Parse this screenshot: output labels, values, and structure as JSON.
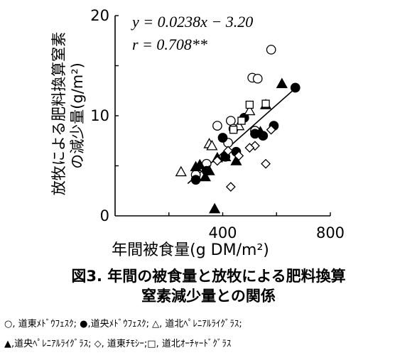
{
  "chart_data": {
    "type": "scatter",
    "title": "",
    "xlabel": "年間被食量(g DM/m²)",
    "ylabel_line1": "放牧による肥料換算窒素",
    "ylabel_line2": "の減少量(g/m²)",
    "xlim": [
      0,
      800
    ],
    "ylim": [
      0,
      20
    ],
    "x_ticks": [
      "400",
      "800"
    ],
    "y_ticks": [
      "0",
      "10",
      "20"
    ],
    "grid": false,
    "regression": {
      "slope": 0.0238,
      "intercept": -3.2,
      "x_range": [
        270,
        680
      ],
      "equation_label": "y = 0.0238x − 3.20",
      "r_label": "r = 0.708**"
    },
    "series": [
      {
        "name": "道東メドウフェスク",
        "marker": "circle-open",
        "points": [
          [
            300,
            4.1
          ],
          [
            340,
            5.2
          ],
          [
            380,
            9.0
          ],
          [
            420,
            7.3
          ],
          [
            430,
            9.5
          ],
          [
            440,
            8.7
          ],
          [
            510,
            13.8
          ],
          [
            530,
            13.7
          ],
          [
            580,
            16.6
          ],
          [
            520,
            8.5
          ]
        ]
      },
      {
        "name": "道央メドウフェスク",
        "marker": "circle-filled",
        "points": [
          [
            300,
            3.6
          ],
          [
            340,
            4.5
          ],
          [
            400,
            7.8
          ],
          [
            410,
            5.9
          ],
          [
            450,
            6.4
          ],
          [
            480,
            9.8
          ],
          [
            550,
            8.0
          ],
          [
            590,
            9.0
          ],
          [
            670,
            12.8
          ],
          [
            520,
            8.2
          ]
        ]
      },
      {
        "name": "道北ペレニアルライグラス",
        "marker": "triangle-open",
        "points": [
          [
            245,
            4.4
          ],
          [
            350,
            7.2
          ],
          [
            360,
            7.0
          ],
          [
            500,
            10.5
          ],
          [
            460,
            9.0
          ]
        ]
      },
      {
        "name": "道央ペレニアルライグラス",
        "marker": "triangle-filled",
        "points": [
          [
            300,
            4.9
          ],
          [
            315,
            5.1
          ],
          [
            335,
            3.9
          ],
          [
            350,
            4.5
          ],
          [
            380,
            5.8
          ],
          [
            410,
            5.9
          ],
          [
            450,
            5.5
          ],
          [
            540,
            8.4
          ],
          [
            560,
            11.1
          ],
          [
            620,
            13.2
          ],
          [
            370,
            0.7
          ]
        ]
      },
      {
        "name": "道東チモシー",
        "marker": "diamond-open",
        "points": [
          [
            380,
            5.5
          ],
          [
            420,
            6.5
          ],
          [
            430,
            2.9
          ],
          [
            460,
            6.0
          ],
          [
            520,
            7.0
          ],
          [
            560,
            5.2
          ],
          [
            580,
            8.6
          ],
          [
            500,
            6.8
          ]
        ]
      },
      {
        "name": "道北オーチャードグラス",
        "marker": "square-open",
        "points": [
          [
            470,
            9.5
          ],
          [
            500,
            11.1
          ],
          [
            560,
            11.2
          ],
          [
            440,
            8.6
          ]
        ]
      }
    ]
  },
  "caption": {
    "line1": "図3. 年間の被食量と放牧による肥料換算",
    "line2": "窒素減少量との関係"
  },
  "legend": {
    "line1": "○, 道東ﾒﾄﾞｳﾌｪｽｸ; ●,道央ﾒﾄﾞｳﾌｪｽｸ; △, 道北ﾍﾟﾚﾆｱﾙﾗｲｸﾞﾗｽ;",
    "line2": "▲,道央ﾍﾟﾚﾆｱﾙﾗｲｸﾞﾗｽ; ◇, 道東ﾁﾓｼｰ;□, 道北ｵｰﾁｬｰﾄﾞｸﾞﾗｽ"
  }
}
